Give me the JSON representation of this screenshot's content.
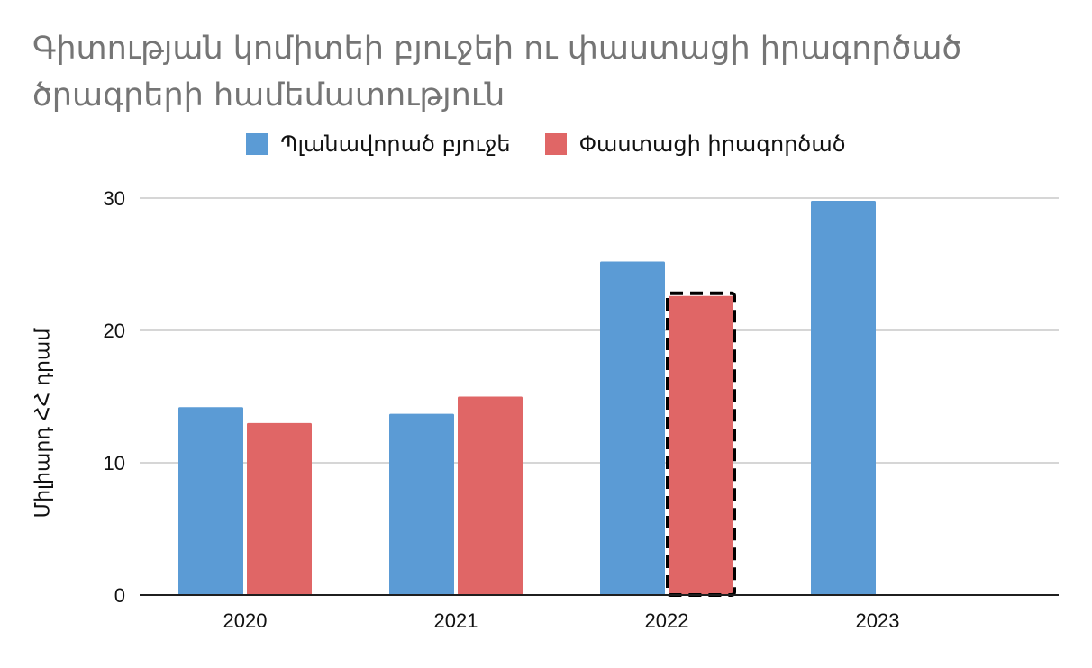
{
  "chart_data": {
    "type": "bar",
    "title": "Գիտության կոմիտեի բյուջեի ու փաստացի իրագործած ծրագրերի համեմատություն",
    "xlabel": "",
    "ylabel": "Միլիարդ ՀՀ դրամ",
    "categories": [
      "2020",
      "2021",
      "2022",
      "2023"
    ],
    "ylim": [
      0,
      30
    ],
    "yticks": [
      0,
      10,
      20,
      30
    ],
    "grid": true,
    "legend_position": "top",
    "series": [
      {
        "name": "Պլանավորած բյուջե",
        "color": "#5b9bd5",
        "values": [
          14.2,
          13.7,
          25.2,
          29.8
        ]
      },
      {
        "name": "Փաստացի իրագործած",
        "color": "#e06666",
        "values": [
          13.0,
          15.0,
          22.6,
          null
        ]
      }
    ],
    "highlight": {
      "series_index": 1,
      "category_index": 2,
      "style": "dashed-outline",
      "color": "#000000"
    }
  }
}
